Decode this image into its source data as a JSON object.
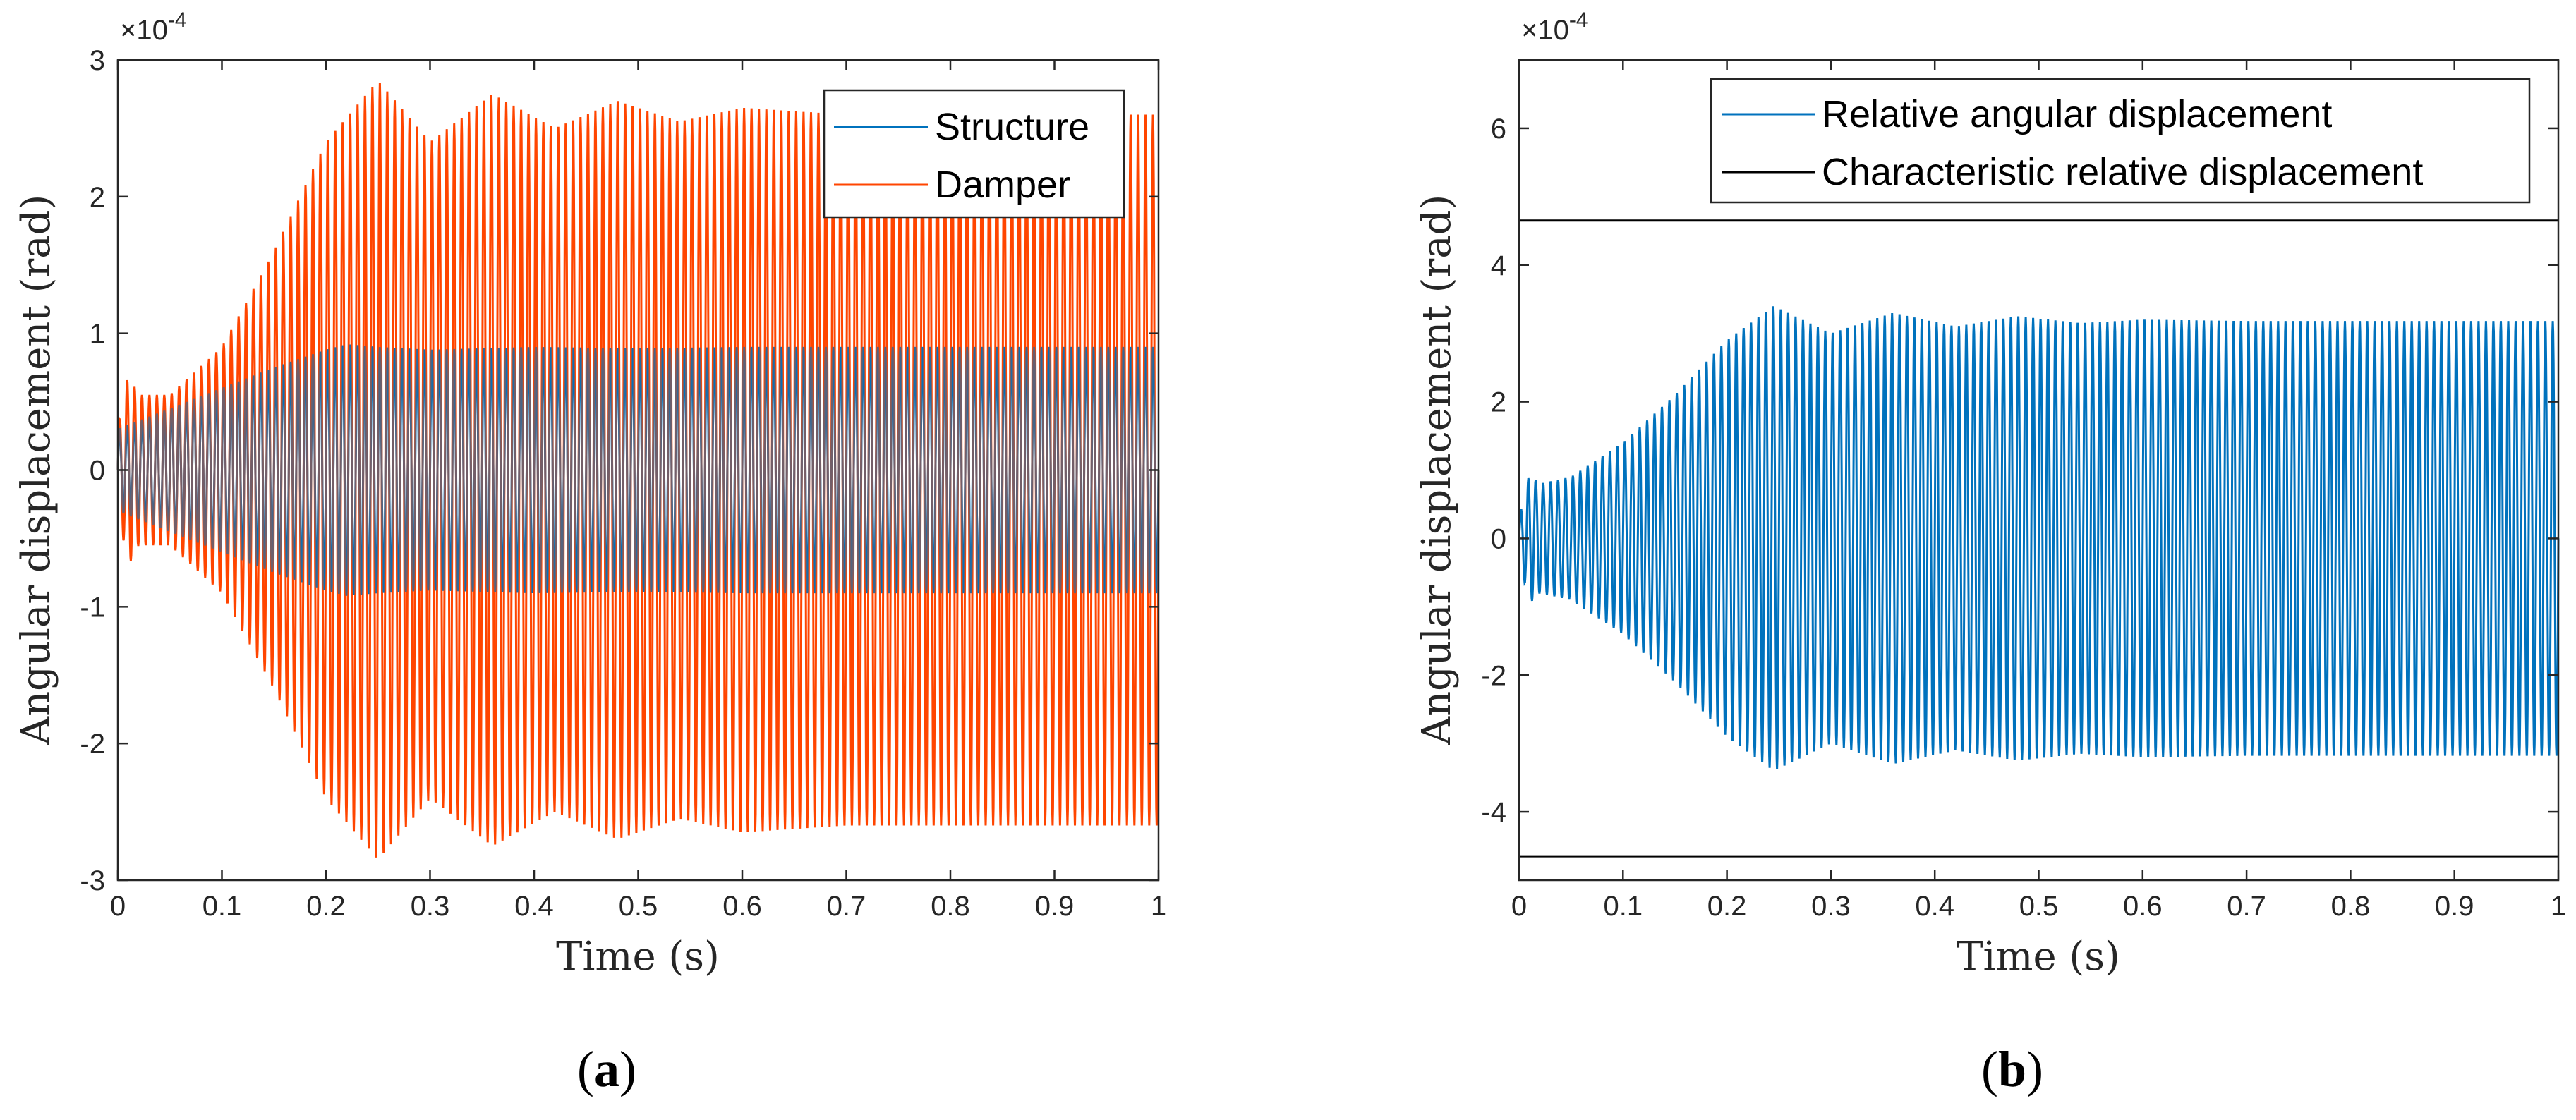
{
  "chart_data": [
    {
      "panel": "a",
      "type": "line",
      "panel_label": "a",
      "xlabel": "Time (s)",
      "ylabel": "Angular displacement (rad)",
      "xlim": [
        0,
        1
      ],
      "ylim": [
        -3,
        3
      ],
      "y_multiplier": "×10",
      "y_exponent": "-4",
      "xticks": [
        0,
        0.1,
        0.2,
        0.3,
        0.4,
        0.5,
        0.6,
        0.7,
        0.8,
        0.9,
        1
      ],
      "xtick_labels": [
        "0",
        "0.1",
        "0.2",
        "0.3",
        "0.4",
        "0.5",
        "0.6",
        "0.7",
        "0.8",
        "0.9",
        "1"
      ],
      "yticks": [
        -3,
        -2,
        -1,
        0,
        1,
        2,
        3
      ],
      "ytick_labels": [
        "-3",
        "-2",
        "-1",
        "0",
        "1",
        "2",
        "3"
      ],
      "grid": false,
      "legend_position": "top-right",
      "oscillation_cycles": 140,
      "series": [
        {
          "name": "Structure",
          "color": "#0072BD",
          "envelope": {
            "t": [
              0,
              0.05,
              0.1,
              0.15,
              0.2,
              0.22,
              0.25,
              0.3,
              0.4,
              0.5,
              0.6,
              0.7,
              0.8,
              0.9,
              1.0
            ],
            "amp": [
              0.3,
              0.45,
              0.6,
              0.75,
              0.88,
              0.92,
              0.9,
              0.88,
              0.9,
              0.89,
              0.9,
              0.9,
              0.9,
              0.9,
              0.9
            ]
          }
        },
        {
          "name": "Damper",
          "color": "#FF4500",
          "envelope": {
            "t": [
              0,
              0.01,
              0.02,
              0.05,
              0.1,
              0.15,
              0.2,
              0.25,
              0.3,
              0.36,
              0.42,
              0.48,
              0.54,
              0.6,
              0.7,
              0.8,
              0.9,
              1.0
            ],
            "amp": [
              0.3,
              0.7,
              0.55,
              0.55,
              0.9,
              1.6,
              2.4,
              2.85,
              2.4,
              2.75,
              2.5,
              2.7,
              2.55,
              2.65,
              2.6,
              2.6,
              2.6,
              2.6
            ]
          }
        }
      ]
    },
    {
      "panel": "b",
      "type": "line",
      "panel_label": "b",
      "xlabel": "Time (s)",
      "ylabel": "Angular displacement (rad)",
      "xlim": [
        0,
        1
      ],
      "ylim": [
        -5,
        7
      ],
      "y_multiplier": "×10",
      "y_exponent": "-4",
      "xticks": [
        0,
        0.1,
        0.2,
        0.3,
        0.4,
        0.5,
        0.6,
        0.7,
        0.8,
        0.9,
        1
      ],
      "xtick_labels": [
        "0",
        "0.1",
        "0.2",
        "0.3",
        "0.4",
        "0.5",
        "0.6",
        "0.7",
        "0.8",
        "0.9",
        "1"
      ],
      "yticks": [
        -4,
        -2,
        0,
        2,
        4,
        6
      ],
      "ytick_labels": [
        "-4",
        "-2",
        "0",
        "2",
        "4",
        "6"
      ],
      "grid": false,
      "legend_position": "top",
      "oscillation_cycles": 140,
      "series": [
        {
          "name": "Relative angular displacement",
          "color": "#0072BD",
          "envelope": {
            "t": [
              0,
              0.01,
              0.02,
              0.05,
              0.1,
              0.15,
              0.2,
              0.245,
              0.3,
              0.36,
              0.42,
              0.48,
              0.54,
              0.6,
              0.7,
              0.8,
              0.9,
              1.0
            ],
            "amp": [
              0.3,
              0.95,
              0.8,
              0.9,
              1.4,
              2.1,
              2.9,
              3.4,
              3.0,
              3.3,
              3.1,
              3.25,
              3.15,
              3.2,
              3.18,
              3.18,
              3.18,
              3.18
            ]
          }
        },
        {
          "name": "Characteristic relative displacement",
          "color": "#000000",
          "values": [
            4.65,
            -4.65
          ]
        }
      ]
    }
  ]
}
